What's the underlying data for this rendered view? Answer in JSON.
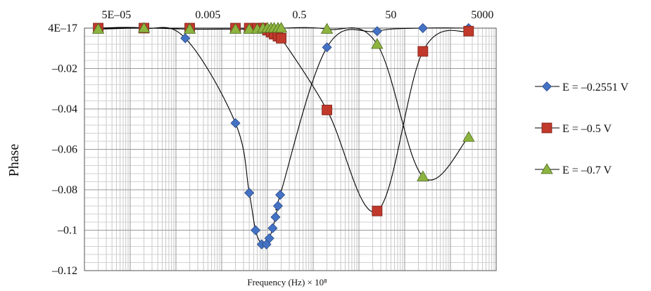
{
  "chart_data": {
    "type": "line",
    "xscale": "log",
    "xlim": [
      1e-05,
      10000
    ],
    "ylim": [
      -0.12,
      0
    ],
    "x_tick_labels": [
      {
        "value": 5e-05,
        "label": "5E–05"
      },
      {
        "value": 0.005,
        "label": "0.005"
      },
      {
        "value": 0.5,
        "label": "0.5"
      },
      {
        "value": 50,
        "label": "50"
      },
      {
        "value": 5000,
        "label": "5000"
      }
    ],
    "y_tick_labels": [
      {
        "value": 0,
        "label": "4E–17"
      },
      {
        "value": -0.02,
        "label": "–0.02"
      },
      {
        "value": -0.04,
        "label": "–0.04"
      },
      {
        "value": -0.06,
        "label": "–0.06"
      },
      {
        "value": -0.08,
        "label": "–0.08"
      },
      {
        "value": -0.1,
        "label": "–0.1"
      },
      {
        "value": -0.12,
        "label": "–0.12"
      }
    ],
    "xlabel": "Frequency (Hz) × 10⁸",
    "ylabel": "Phase",
    "grid": true,
    "legend_position": "right",
    "series": [
      {
        "name": "E = –0.2551 V",
        "marker": "diamond",
        "color": "#4472C4",
        "points": [
          [
            2e-05,
            0
          ],
          [
            0.0002,
            0
          ],
          [
            0.0016,
            -0.005
          ],
          [
            0.02,
            -0.047
          ],
          [
            0.04,
            -0.0815
          ],
          [
            0.055,
            -0.1
          ],
          [
            0.075,
            -0.107
          ],
          [
            0.095,
            -0.107
          ],
          [
            0.11,
            -0.104
          ],
          [
            0.13,
            -0.099
          ],
          [
            0.15,
            -0.0935
          ],
          [
            0.17,
            -0.088
          ],
          [
            0.19,
            -0.0825
          ],
          [
            2,
            -0.0095
          ],
          [
            25,
            -0.0015
          ],
          [
            250,
            0
          ],
          [
            2500,
            0
          ]
        ]
      },
      {
        "name": "E = –0.5 V",
        "marker": "square",
        "color": "#C0392B",
        "points": [
          [
            2e-05,
            0
          ],
          [
            0.0002,
            0
          ],
          [
            0.002,
            0
          ],
          [
            0.02,
            0
          ],
          [
            0.04,
            0
          ],
          [
            0.06,
            0
          ],
          [
            0.08,
            0
          ],
          [
            0.1,
            -0.001
          ],
          [
            0.12,
            -0.002
          ],
          [
            0.14,
            -0.003
          ],
          [
            0.17,
            -0.004
          ],
          [
            0.2,
            -0.005
          ],
          [
            2,
            -0.0405
          ],
          [
            25,
            -0.0905
          ],
          [
            250,
            -0.0115
          ],
          [
            2500,
            -0.0015
          ]
        ]
      },
      {
        "name": "E = –0.7 V",
        "marker": "triangle",
        "color": "#8DB43F",
        "points": [
          [
            2e-05,
            -0.0005
          ],
          [
            0.0002,
            0
          ],
          [
            0.002,
            -0.0005
          ],
          [
            0.02,
            -0.0005
          ],
          [
            0.04,
            -0.0005
          ],
          [
            0.06,
            -0.0005
          ],
          [
            0.08,
            0
          ],
          [
            0.1,
            0
          ],
          [
            0.12,
            0
          ],
          [
            0.14,
            0
          ],
          [
            0.17,
            0
          ],
          [
            0.2,
            0
          ],
          [
            2,
            -0.0005
          ],
          [
            25,
            -0.008
          ],
          [
            250,
            -0.0735
          ],
          [
            2500,
            -0.054
          ]
        ]
      }
    ]
  }
}
